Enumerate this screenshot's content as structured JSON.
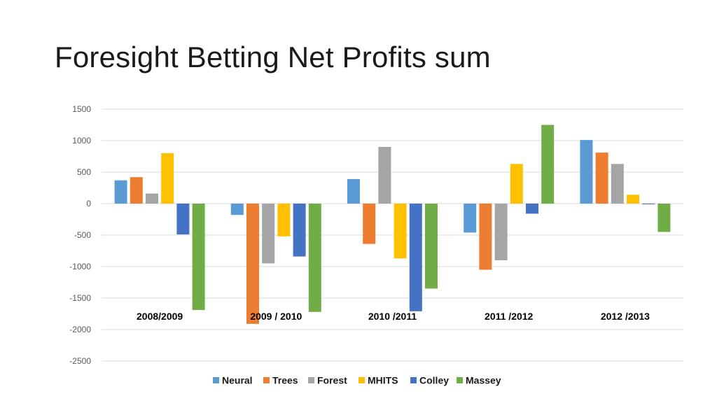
{
  "title": "Foresight Betting Net Profits sum",
  "chart_data": {
    "type": "bar",
    "categories": [
      "2008/2009",
      "2009 / 2010",
      "2010 /2011",
      "2011 /2012",
      "2012 /2013"
    ],
    "series": [
      {
        "name": "Neural",
        "color": "#5B9BD5",
        "values": [
          370,
          -180,
          390,
          -460,
          1010
        ]
      },
      {
        "name": "Trees",
        "color": "#ED7D31",
        "values": [
          420,
          -1910,
          -640,
          -1050,
          810
        ]
      },
      {
        "name": "Forest",
        "color": "#A5A5A5",
        "values": [
          160,
          -950,
          900,
          -900,
          630
        ]
      },
      {
        "name": "MHITS",
        "color": "#FFC000",
        "values": [
          800,
          -520,
          -870,
          630,
          140
        ]
      },
      {
        "name": "Colley",
        "color": "#4472C4",
        "values": [
          -490,
          -840,
          -1710,
          -160,
          -10
        ]
      },
      {
        "name": "Massey",
        "color": "#70AD47",
        "values": [
          -1690,
          -1720,
          -1350,
          1250,
          -450
        ]
      }
    ],
    "ylim": [
      -2500,
      1500
    ],
    "yticks": [
      1500,
      1000,
      500,
      0,
      -500,
      -1000,
      -1500,
      -2000,
      -2500
    ],
    "grid": true,
    "legend": "bottom"
  }
}
